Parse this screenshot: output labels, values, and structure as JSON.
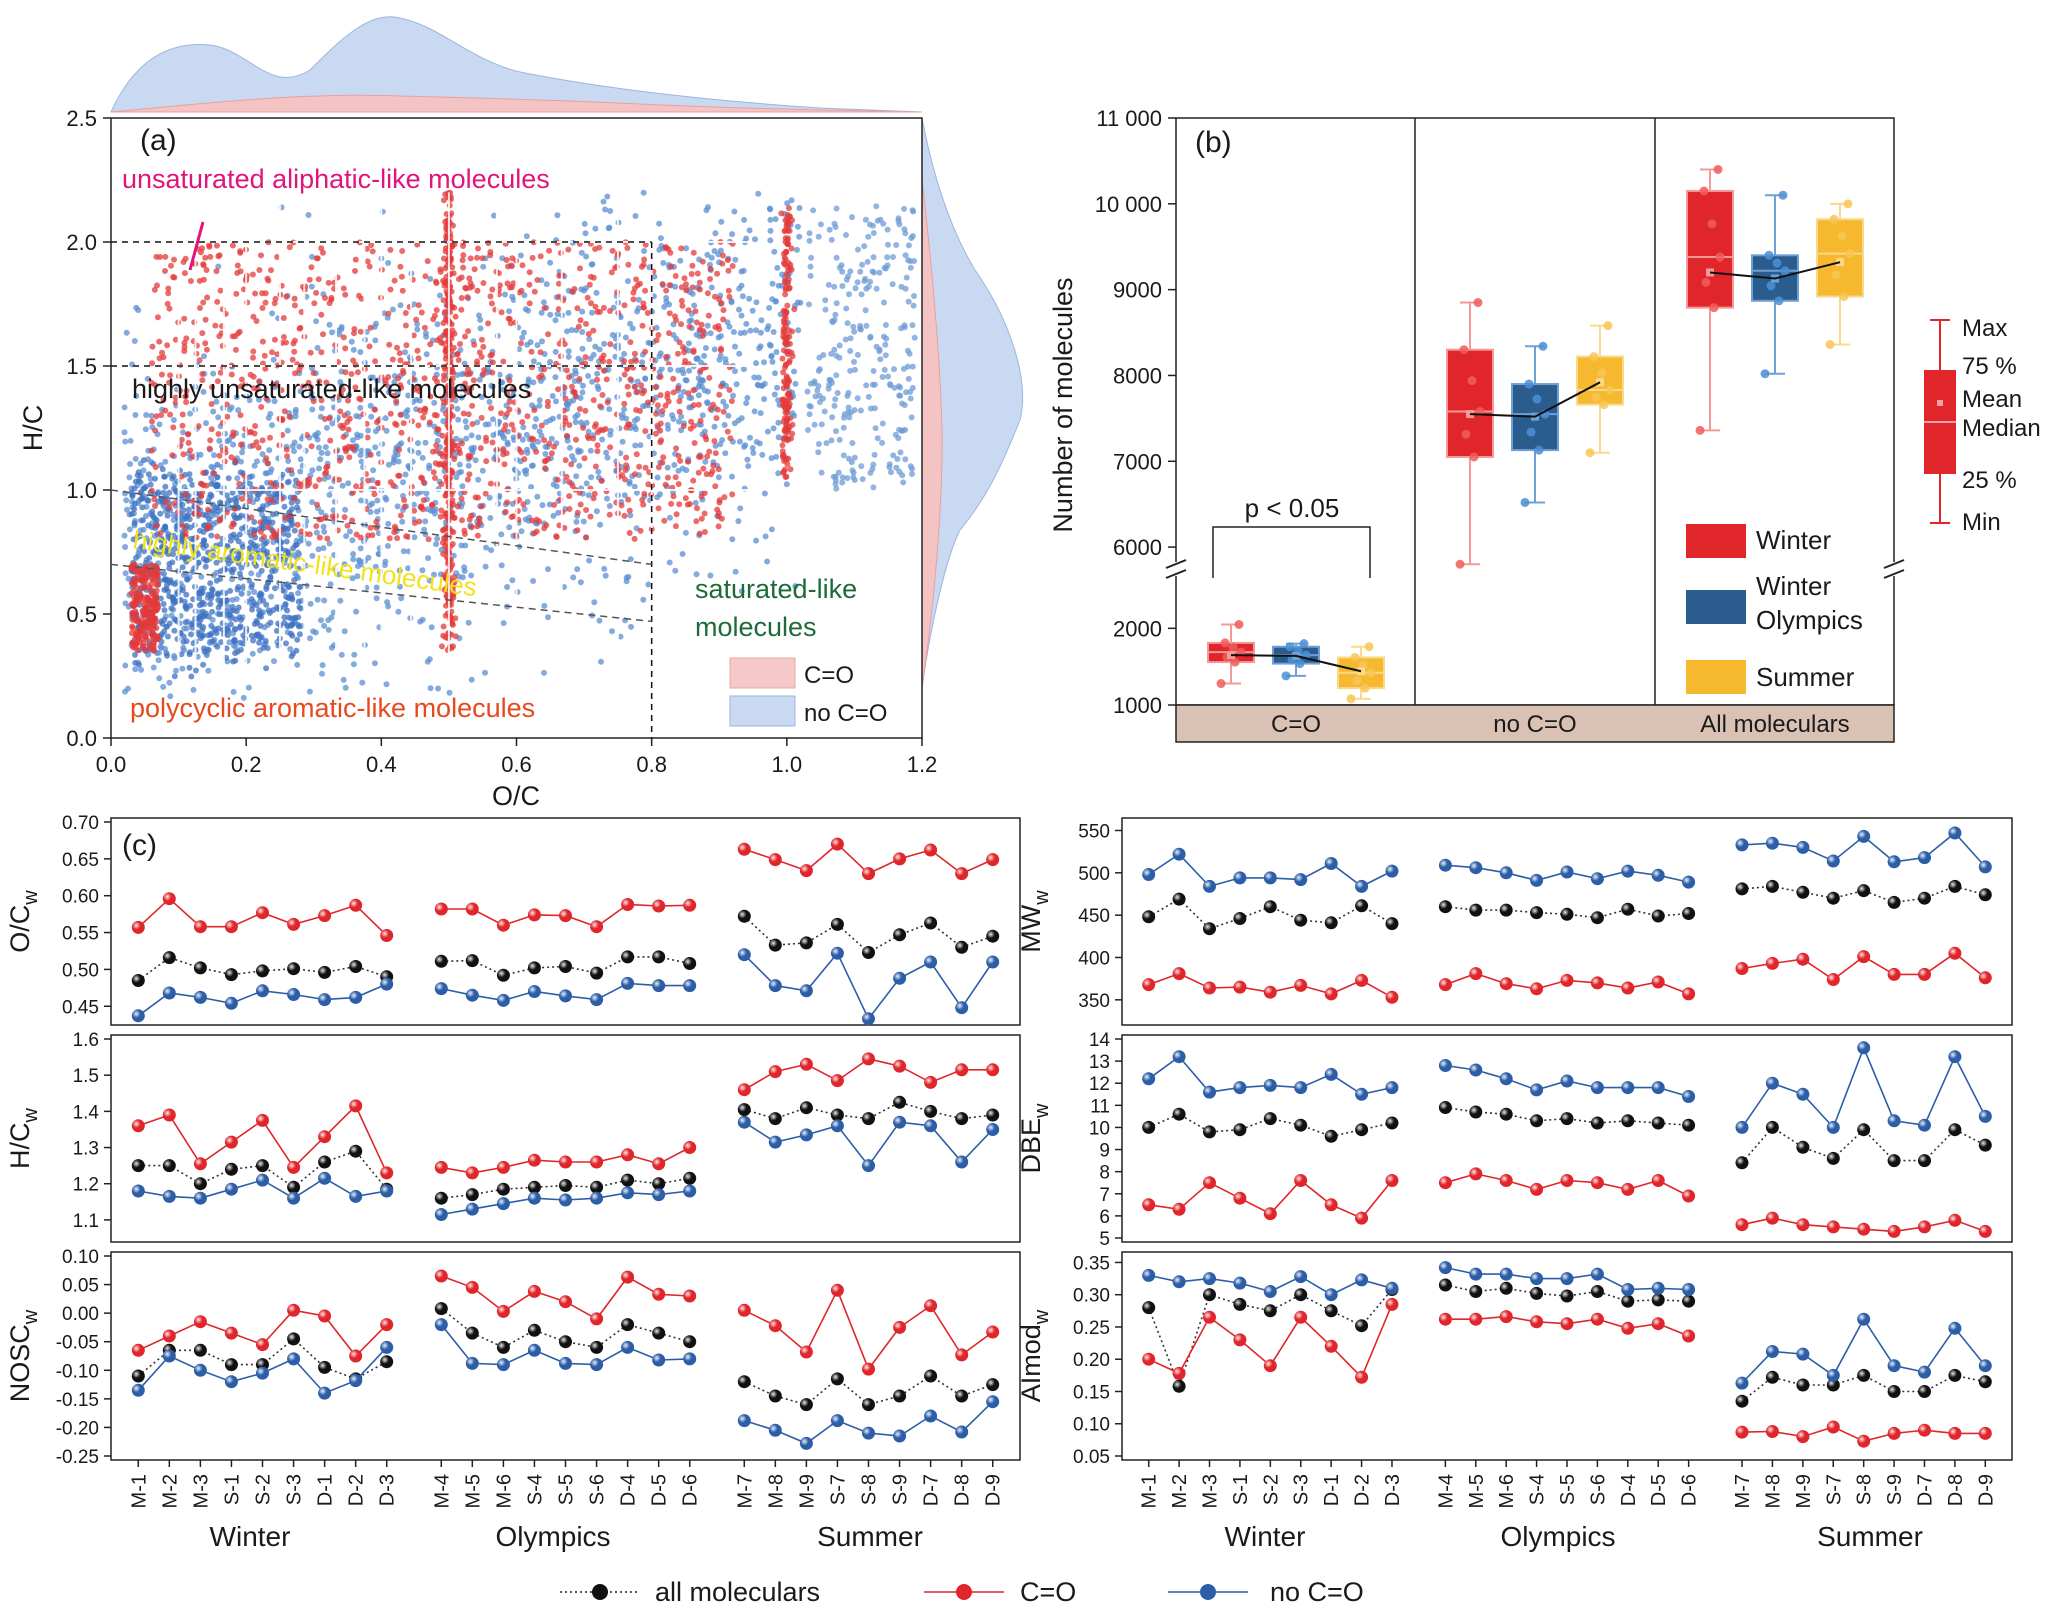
{
  "colors": {
    "red": "#e0262b",
    "red_light": "#f08a88",
    "blue": "#2c5ea8",
    "blue_light": "#7fa4d8",
    "blue_dark": "#2a5c8e",
    "yellow": "#f5b82e",
    "tan": "#d9c2b4",
    "dark_green": "#1e6b3a",
    "magenta": "#e0147a",
    "orange_red": "#e8481e",
    "yellow_text": "#f2e21a"
  },
  "panel_a": {
    "label": "(a)",
    "xlabel": "O/C",
    "ylabel": "H/C",
    "xlim": [
      0,
      1.2
    ],
    "ylim": [
      0,
      2.5
    ],
    "x_ticks": [
      "0.0",
      "0.2",
      "0.4",
      "0.6",
      "0.8",
      "1.0",
      "1.2"
    ],
    "y_ticks": [
      "0.0",
      "0.5",
      "1.0",
      "1.5",
      "2.0",
      "2.5"
    ],
    "regions": {
      "unsaturated_aliphatic": "unsaturated aliphatic-like molecules",
      "highly_unsaturated": "highly unsaturated-like molecules",
      "highly_aromatic": "highly aromatic-like molecules",
      "saturated_line1": "saturated-like",
      "saturated_line2": "molecules",
      "polycyclic": "polycyclic aromatic-like molecules"
    },
    "legend": [
      "C=O",
      "no C=O"
    ]
  },
  "panel_b": {
    "label": "(b)",
    "ylabel": "Number of molecules",
    "y_ticks_upper": [
      "6000",
      "7000",
      "8000",
      "9000",
      "10 000",
      "11 000"
    ],
    "y_ticks_lower": [
      "1000",
      "2000"
    ],
    "sig_label": "p < 0.05",
    "groups": [
      "C=O",
      "no C=O",
      "All moleculars"
    ],
    "series_labels": {
      "winter": "Winter",
      "olympics_line1": "Winter",
      "olympics_line2": "Olympics",
      "summer": "Summer"
    },
    "box_legend": {
      "max": "Max",
      "p75": "75 %",
      "mean": "Mean",
      "median": "Median",
      "p25": "25 %",
      "min": "Min"
    }
  },
  "panel_c": {
    "label": "(c)",
    "groups": [
      "Winter",
      "Olympics",
      "Summer"
    ],
    "legend": [
      "all moleculars",
      "C=O",
      "no C=O"
    ]
  },
  "chart_data": [
    {
      "type": "scatter",
      "panel": "a",
      "title": "",
      "xlabel": "O/C",
      "ylabel": "H/C",
      "xlim": [
        0,
        1.2
      ],
      "ylim": [
        0,
        2.5
      ],
      "series": [
        {
          "name": "C=O",
          "description_values": "dense cloud 0.02-1.0 O/C, 0.3-2.2 H/C"
        },
        {
          "name": "no C=O",
          "description_values": "cloud 0.02-1.2 O/C, 0.2-2.2 H/C"
        }
      ],
      "boundaries": {
        "hc_2_0": 2.0,
        "hc_1_5": 1.5,
        "oc_0_8": 0.8,
        "aimod_0_5_line": [
          [
            0,
            1.0
          ],
          [
            0.8,
            0.7
          ]
        ],
        "aimod_0_67_line": [
          [
            0,
            0.7
          ],
          [
            0.8,
            0.47
          ]
        ]
      }
    },
    {
      "type": "box",
      "panel": "b",
      "ylabel": "Number of molecules",
      "categories": [
        "C=O",
        "no C=O",
        "All moleculars"
      ],
      "series": [
        {
          "name": "Winter",
          "boxes": [
            {
              "min": 1280,
              "q1": 1560,
              "median": 1690,
              "q3": 1810,
              "max": 2050,
              "mean": 1650
            },
            {
              "min": 5800,
              "q1": 7050,
              "median": 7580,
              "q3": 8300,
              "max": 8850,
              "mean": 7550
            },
            {
              "min": 7360,
              "q1": 8790,
              "median": 9380,
              "q3": 10150,
              "max": 10400,
              "mean": 9200
            }
          ]
        },
        {
          "name": "Winter Olympics",
          "boxes": [
            {
              "min": 1380,
              "q1": 1540,
              "median": 1650,
              "q3": 1760,
              "max": 1800,
              "mean": 1640
            },
            {
              "min": 6520,
              "q1": 7130,
              "median": 7550,
              "q3": 7900,
              "max": 8340,
              "mean": 7520
            },
            {
              "min": 8020,
              "q1": 8870,
              "median": 9220,
              "q3": 9400,
              "max": 10100,
              "mean": 9130
            }
          ]
        },
        {
          "name": "Summer",
          "boxes": [
            {
              "min": 1080,
              "q1": 1220,
              "median": 1420,
              "q3": 1620,
              "max": 1760,
              "mean": 1440
            },
            {
              "min": 7100,
              "q1": 7660,
              "median": 7830,
              "q3": 8220,
              "max": 8580,
              "mean": 7920
            },
            {
              "min": 8360,
              "q1": 8920,
              "median": 9420,
              "q3": 9820,
              "max": 10000,
              "mean": 9320
            }
          ]
        }
      ]
    },
    {
      "type": "line",
      "panel": "c",
      "ylabel": "O/C_w",
      "ylim": [
        0.43,
        0.7
      ],
      "y_ticks": [
        "0.45",
        "0.50",
        "0.55",
        "0.60",
        "0.65",
        "0.70"
      ],
      "categories": [
        "M-1",
        "M-2",
        "M-3",
        "S-1",
        "S-2",
        "S-3",
        "D-1",
        "D-2",
        "D-3",
        "M-4",
        "M-5",
        "M-6",
        "S-4",
        "S-5",
        "S-6",
        "D-4",
        "D-5",
        "D-6",
        "M-7",
        "M-8",
        "M-9",
        "S-7",
        "S-8",
        "S-9",
        "D-7",
        "D-8",
        "D-9"
      ],
      "series": [
        {
          "name": "all moleculars",
          "values": [
            0.485,
            0.516,
            0.502,
            0.493,
            0.498,
            0.501,
            0.496,
            0.504,
            0.49,
            0.511,
            0.512,
            0.492,
            0.502,
            0.504,
            0.495,
            0.517,
            0.517,
            0.508,
            0.572,
            0.533,
            0.536,
            0.561,
            0.523,
            0.547,
            0.563,
            0.53,
            0.545
          ]
        },
        {
          "name": "C=O",
          "values": [
            0.557,
            0.596,
            0.558,
            0.558,
            0.577,
            0.561,
            0.573,
            0.587,
            0.546,
            0.582,
            0.582,
            0.56,
            0.574,
            0.573,
            0.558,
            0.588,
            0.586,
            0.587,
            0.663,
            0.649,
            0.634,
            0.67,
            0.63,
            0.65,
            0.662,
            0.63,
            0.649
          ]
        },
        {
          "name": "no C=O",
          "values": [
            0.437,
            0.468,
            0.462,
            0.454,
            0.471,
            0.466,
            0.459,
            0.462,
            0.48,
            0.474,
            0.465,
            0.458,
            0.47,
            0.464,
            0.459,
            0.481,
            0.478,
            0.478,
            0.52,
            0.478,
            0.471,
            0.522,
            0.433,
            0.488,
            0.51,
            0.448,
            0.51
          ]
        }
      ]
    },
    {
      "type": "line",
      "panel": "c",
      "ylabel": "MW_w",
      "ylim": [
        325,
        560
      ],
      "y_ticks": [
        "350",
        "400",
        "450",
        "500",
        "550"
      ],
      "categories": [
        "M-1",
        "M-2",
        "M-3",
        "S-1",
        "S-2",
        "S-3",
        "D-1",
        "D-2",
        "D-3",
        "M-4",
        "M-5",
        "M-6",
        "S-4",
        "S-5",
        "S-6",
        "D-4",
        "D-5",
        "D-6",
        "M-7",
        "M-8",
        "M-9",
        "S-7",
        "S-8",
        "S-9",
        "D-7",
        "D-8",
        "D-9"
      ],
      "series": [
        {
          "name": "all moleculars",
          "values": [
            448,
            469,
            434,
            446,
            460,
            444,
            441,
            461,
            440,
            460,
            456,
            456,
            453,
            451,
            447,
            457,
            449,
            452,
            481,
            484,
            477,
            470,
            479,
            465,
            470,
            484,
            474
          ]
        },
        {
          "name": "C=O",
          "values": [
            368,
            381,
            364,
            365,
            359,
            367,
            357,
            373,
            353,
            368,
            381,
            369,
            363,
            373,
            370,
            364,
            371,
            357,
            387,
            393,
            398,
            374,
            401,
            380,
            380,
            405,
            376
          ]
        },
        {
          "name": "no C=O",
          "values": [
            498,
            522,
            484,
            494,
            494,
            492,
            511,
            484,
            502,
            509,
            506,
            500,
            491,
            501,
            493,
            502,
            497,
            489,
            533,
            535,
            530,
            514,
            543,
            513,
            518,
            547,
            507
          ]
        }
      ]
    },
    {
      "type": "line",
      "panel": "c",
      "ylabel": "H/C_w",
      "ylim": [
        1.05,
        1.6
      ],
      "y_ticks": [
        "1.1",
        "1.2",
        "1.3",
        "1.4",
        "1.5",
        "1.6"
      ],
      "categories": [
        "M-1",
        "M-2",
        "M-3",
        "S-1",
        "S-2",
        "S-3",
        "D-1",
        "D-2",
        "D-3",
        "M-4",
        "M-5",
        "M-6",
        "S-4",
        "S-5",
        "S-6",
        "D-4",
        "D-5",
        "D-6",
        "M-7",
        "M-8",
        "M-9",
        "S-7",
        "S-8",
        "S-9",
        "D-7",
        "D-8",
        "D-9"
      ],
      "series": [
        {
          "name": "all moleculars",
          "values": [
            1.25,
            1.25,
            1.2,
            1.24,
            1.25,
            1.19,
            1.26,
            1.29,
            1.185,
            1.16,
            1.17,
            1.185,
            1.19,
            1.195,
            1.19,
            1.21,
            1.2,
            1.215,
            1.405,
            1.38,
            1.41,
            1.39,
            1.38,
            1.425,
            1.4,
            1.38,
            1.39
          ]
        },
        {
          "name": "C=O",
          "values": [
            1.36,
            1.39,
            1.255,
            1.315,
            1.375,
            1.245,
            1.33,
            1.415,
            1.23,
            1.245,
            1.23,
            1.245,
            1.265,
            1.26,
            1.26,
            1.28,
            1.255,
            1.3,
            1.46,
            1.51,
            1.53,
            1.485,
            1.545,
            1.525,
            1.48,
            1.515,
            1.515
          ]
        },
        {
          "name": "no C=O",
          "values": [
            1.18,
            1.165,
            1.16,
            1.185,
            1.21,
            1.16,
            1.215,
            1.165,
            1.18,
            1.115,
            1.13,
            1.145,
            1.16,
            1.155,
            1.16,
            1.175,
            1.17,
            1.18,
            1.37,
            1.315,
            1.335,
            1.36,
            1.25,
            1.37,
            1.36,
            1.26,
            1.35
          ]
        }
      ]
    },
    {
      "type": "line",
      "panel": "c",
      "ylabel": "DBE_w",
      "ylim": [
        5,
        14
      ],
      "y_ticks": [
        "5",
        "6",
        "7",
        "8",
        "9",
        "10",
        "11",
        "12",
        "13",
        "14"
      ],
      "categories": [
        "M-1",
        "M-2",
        "M-3",
        "S-1",
        "S-2",
        "S-3",
        "D-1",
        "D-2",
        "D-3",
        "M-4",
        "M-5",
        "M-6",
        "S-4",
        "S-5",
        "S-6",
        "D-4",
        "D-5",
        "D-6",
        "M-7",
        "M-8",
        "M-9",
        "S-7",
        "S-8",
        "S-9",
        "D-7",
        "D-8",
        "D-9"
      ],
      "series": [
        {
          "name": "all moleculars",
          "values": [
            10.0,
            10.6,
            9.8,
            9.9,
            10.4,
            10.1,
            9.6,
            9.9,
            10.2,
            10.9,
            10.7,
            10.6,
            10.3,
            10.4,
            10.2,
            10.3,
            10.2,
            10.1,
            8.4,
            10.0,
            9.1,
            8.6,
            9.9,
            8.5,
            8.5,
            9.9,
            9.2
          ]
        },
        {
          "name": "C=O",
          "values": [
            6.5,
            6.3,
            7.5,
            6.8,
            6.1,
            7.6,
            6.5,
            5.9,
            7.6,
            7.5,
            7.9,
            7.6,
            7.2,
            7.6,
            7.5,
            7.2,
            7.6,
            6.9,
            5.6,
            5.9,
            5.6,
            5.5,
            5.4,
            5.3,
            5.5,
            5.8,
            5.3
          ]
        },
        {
          "name": "no C=O",
          "values": [
            12.2,
            13.2,
            11.6,
            11.8,
            11.9,
            11.8,
            12.4,
            11.5,
            11.8,
            12.8,
            12.6,
            12.2,
            11.7,
            12.1,
            11.8,
            11.8,
            11.8,
            11.4,
            10.0,
            12.0,
            11.5,
            10.0,
            13.6,
            10.3,
            10.1,
            13.2,
            10.5
          ]
        }
      ]
    },
    {
      "type": "line",
      "panel": "c",
      "ylabel": "NOSC_w",
      "ylim": [
        -0.25,
        0.1
      ],
      "y_ticks": [
        "-0.25",
        "-0.20",
        "-0.15",
        "-0.10",
        "-0.05",
        "0.00",
        "0.05",
        "0.10"
      ],
      "categories": [
        "M-1",
        "M-2",
        "M-3",
        "S-1",
        "S-2",
        "S-3",
        "D-1",
        "D-2",
        "D-3",
        "M-4",
        "M-5",
        "M-6",
        "S-4",
        "S-5",
        "S-6",
        "D-4",
        "D-5",
        "D-6",
        "M-7",
        "M-8",
        "M-9",
        "S-7",
        "S-8",
        "S-9",
        "D-7",
        "D-8",
        "D-9"
      ],
      "series": [
        {
          "name": "all moleculars",
          "values": [
            -0.11,
            -0.065,
            -0.065,
            -0.09,
            -0.09,
            -0.045,
            -0.095,
            -0.115,
            -0.085,
            0.008,
            -0.035,
            -0.06,
            -0.03,
            -0.05,
            -0.06,
            -0.02,
            -0.035,
            -0.05,
            -0.12,
            -0.145,
            -0.16,
            -0.115,
            -0.16,
            -0.145,
            -0.11,
            -0.145,
            -0.125
          ]
        },
        {
          "name": "C=O",
          "values": [
            -0.065,
            -0.04,
            -0.015,
            -0.035,
            -0.055,
            0.005,
            -0.005,
            -0.075,
            -0.02,
            0.065,
            0.045,
            0.003,
            0.038,
            0.02,
            -0.01,
            0.063,
            0.033,
            0.03,
            0.005,
            -0.022,
            -0.068,
            0.04,
            -0.098,
            -0.025,
            0.013,
            -0.073,
            -0.033
          ]
        },
        {
          "name": "no C=O",
          "values": [
            -0.135,
            -0.075,
            -0.1,
            -0.12,
            -0.105,
            -0.08,
            -0.14,
            -0.118,
            -0.06,
            -0.02,
            -0.088,
            -0.09,
            -0.065,
            -0.088,
            -0.09,
            -0.06,
            -0.082,
            -0.08,
            -0.188,
            -0.205,
            -0.228,
            -0.188,
            -0.21,
            -0.215,
            -0.18,
            -0.208,
            -0.155
          ]
        }
      ]
    },
    {
      "type": "line",
      "panel": "c",
      "ylabel": "AImod_w",
      "ylim": [
        0.05,
        0.36
      ],
      "y_ticks": [
        "0.05",
        "0.10",
        "0.15",
        "0.20",
        "0.25",
        "0.30",
        "0.35"
      ],
      "categories": [
        "M-1",
        "M-2",
        "M-3",
        "S-1",
        "S-2",
        "S-3",
        "D-1",
        "D-2",
        "D-3",
        "M-4",
        "M-5",
        "M-6",
        "S-4",
        "S-5",
        "S-6",
        "D-4",
        "D-5",
        "D-6",
        "M-7",
        "M-8",
        "M-9",
        "S-7",
        "S-8",
        "S-9",
        "D-7",
        "D-8",
        "D-9"
      ],
      "series": [
        {
          "name": "all moleculars",
          "values": [
            0.28,
            0.158,
            0.3,
            0.285,
            0.275,
            0.3,
            0.275,
            0.252,
            0.308,
            0.315,
            0.305,
            0.31,
            0.302,
            0.298,
            0.305,
            0.29,
            0.292,
            0.29,
            0.135,
            0.172,
            0.16,
            0.16,
            0.175,
            0.15,
            0.15,
            0.175,
            0.165
          ]
        },
        {
          "name": "C=O",
          "values": [
            0.2,
            0.178,
            0.265,
            0.23,
            0.19,
            0.265,
            0.22,
            0.172,
            0.285,
            0.262,
            0.262,
            0.266,
            0.258,
            0.255,
            0.262,
            0.248,
            0.255,
            0.236,
            0.087,
            0.088,
            0.08,
            0.095,
            0.073,
            0.085,
            0.09,
            0.085,
            0.085
          ]
        },
        {
          "name": "no C=O",
          "values": [
            0.33,
            0.32,
            0.325,
            0.318,
            0.305,
            0.328,
            0.3,
            0.323,
            0.31,
            0.342,
            0.332,
            0.332,
            0.325,
            0.325,
            0.332,
            0.308,
            0.31,
            0.308,
            0.163,
            0.212,
            0.208,
            0.175,
            0.262,
            0.19,
            0.18,
            0.248,
            0.19
          ]
        }
      ]
    }
  ]
}
